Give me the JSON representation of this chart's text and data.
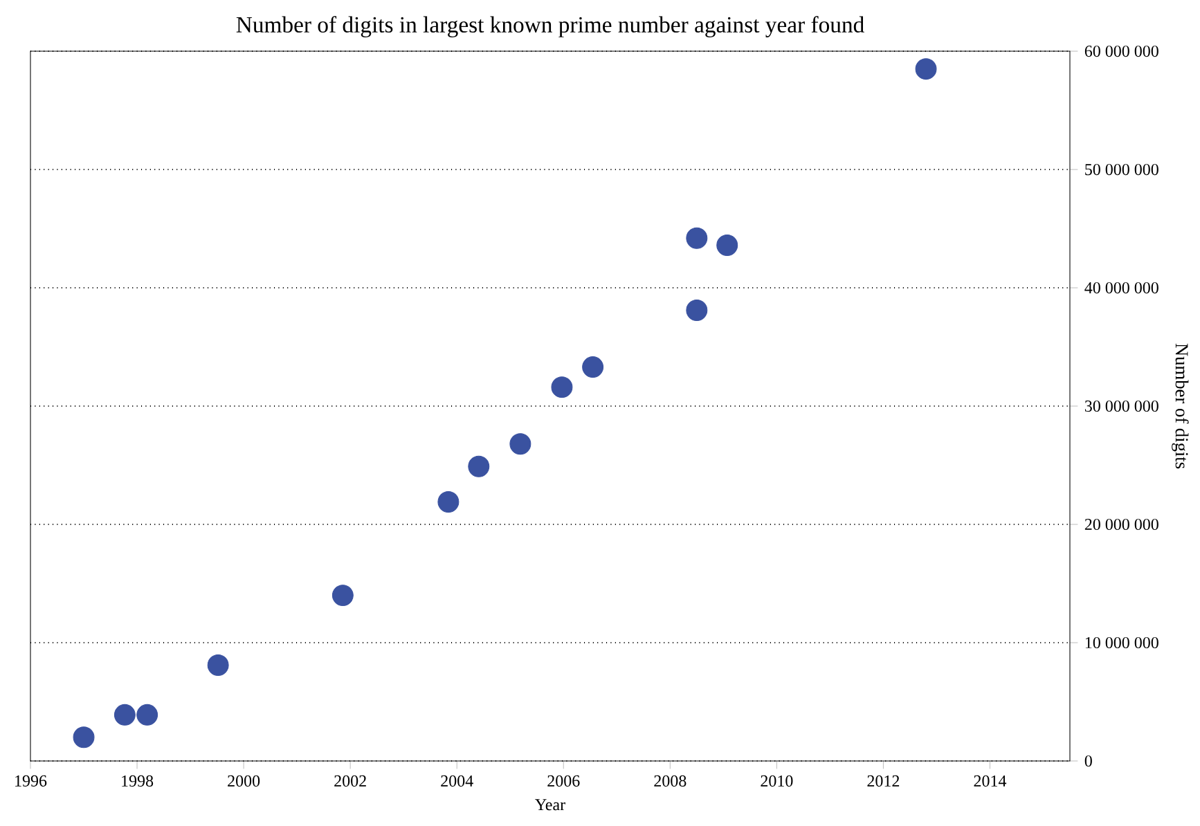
{
  "chart_data": {
    "type": "scatter",
    "title": "Number of digits in largest known prime number against year found",
    "xlabel": "Year",
    "ylabel": "Number of digits",
    "x": [
      1997.0,
      1997.77,
      1998.19,
      1999.52,
      2001.86,
      2003.84,
      2004.41,
      2005.19,
      2005.97,
      2006.55,
      2008.5,
      2008.5,
      2009.07,
      2012.8
    ],
    "values": [
      2000000.0,
      3900000.0,
      3900000.0,
      8100000.0,
      14000000.0,
      21900000.0,
      24900000.0,
      26800000.0,
      31600000.0,
      33300000.0,
      38100000.0,
      44200000.0,
      43600000.0,
      58500000.0
    ],
    "color": "#3a52a0",
    "marker": "circle",
    "grid": "y",
    "xlim": [
      1996,
      2015.5
    ],
    "xticks": [
      1996,
      1998,
      2000,
      2002,
      2004,
      2006,
      2008,
      2010,
      2012,
      2014
    ],
    "ylim": [
      0,
      60000000
    ],
    "yticks": [
      0,
      {
        "value": 10000000,
        "label": "10 000 000"
      },
      {
        "value": 20000000,
        "label": "20 000 000"
      },
      {
        "value": 30000000,
        "label": "30 000 000"
      },
      {
        "value": 40000000,
        "label": "40 000 000"
      },
      {
        "value": 50000000,
        "label": "50 000 000"
      },
      {
        "value": 60000000,
        "label": "60 000 000"
      }
    ]
  }
}
